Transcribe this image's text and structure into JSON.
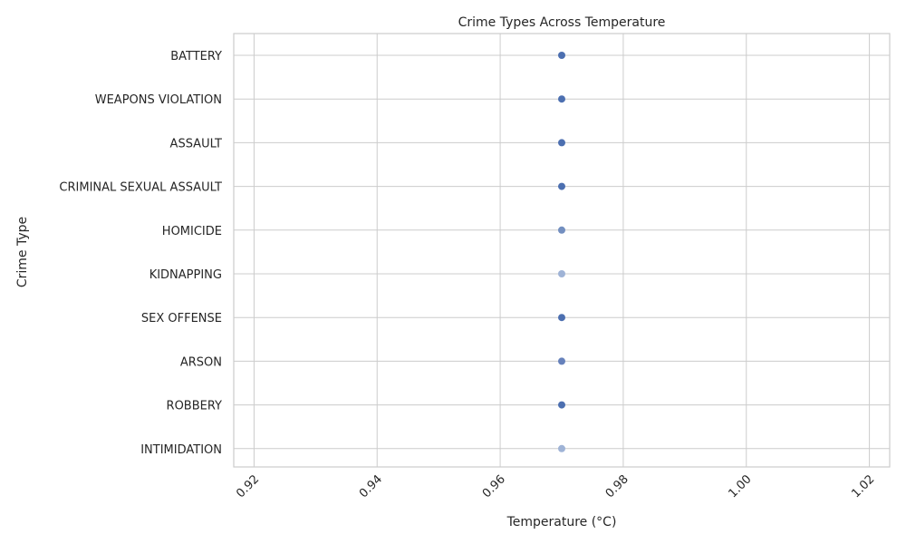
{
  "chart_data": {
    "type": "scatter",
    "title": "Crime Types Across Temperature",
    "xlabel": "Temperature (°C)",
    "ylabel": "Crime Type",
    "xlim": [
      0.9167,
      1.0233
    ],
    "x_ticks": [
      0.92,
      0.94,
      0.96,
      0.98,
      1.0,
      1.02
    ],
    "x_tick_labels": [
      "0.92",
      "0.94",
      "0.96",
      "0.98",
      "1.00",
      "1.02"
    ],
    "x_tick_rotation": 45,
    "categories": [
      "BATTERY",
      "WEAPONS VIOLATION",
      "ASSAULT",
      "CRIMINAL SEXUAL ASSAULT",
      "HOMICIDE",
      "KIDNAPPING",
      "SEX OFFENSE",
      "ARSON",
      "ROBBERY",
      "INTIMIDATION"
    ],
    "points": [
      {
        "category": "BATTERY",
        "x": 0.97,
        "color": "#4c6fb0"
      },
      {
        "category": "WEAPONS VIOLATION",
        "x": 0.97,
        "color": "#4c6fb0"
      },
      {
        "category": "ASSAULT",
        "x": 0.97,
        "color": "#4c6fb0"
      },
      {
        "category": "CRIMINAL SEXUAL ASSAULT",
        "x": 0.97,
        "color": "#4c6fb0"
      },
      {
        "category": "HOMICIDE",
        "x": 0.97,
        "color": "#738fc0"
      },
      {
        "category": "KIDNAPPING",
        "x": 0.97,
        "color": "#9fb3d6"
      },
      {
        "category": "SEX OFFENSE",
        "x": 0.97,
        "color": "#4c6fb0"
      },
      {
        "category": "ARSON",
        "x": 0.97,
        "color": "#6681bb"
      },
      {
        "category": "ROBBERY",
        "x": 0.97,
        "color": "#4c6fb0"
      },
      {
        "category": "INTIMIDATION",
        "x": 0.97,
        "color": "#9fb3d6"
      }
    ],
    "grid": true,
    "colors": {
      "background": "#ffffff",
      "grid": "#cccccc",
      "text": "#262626"
    }
  }
}
